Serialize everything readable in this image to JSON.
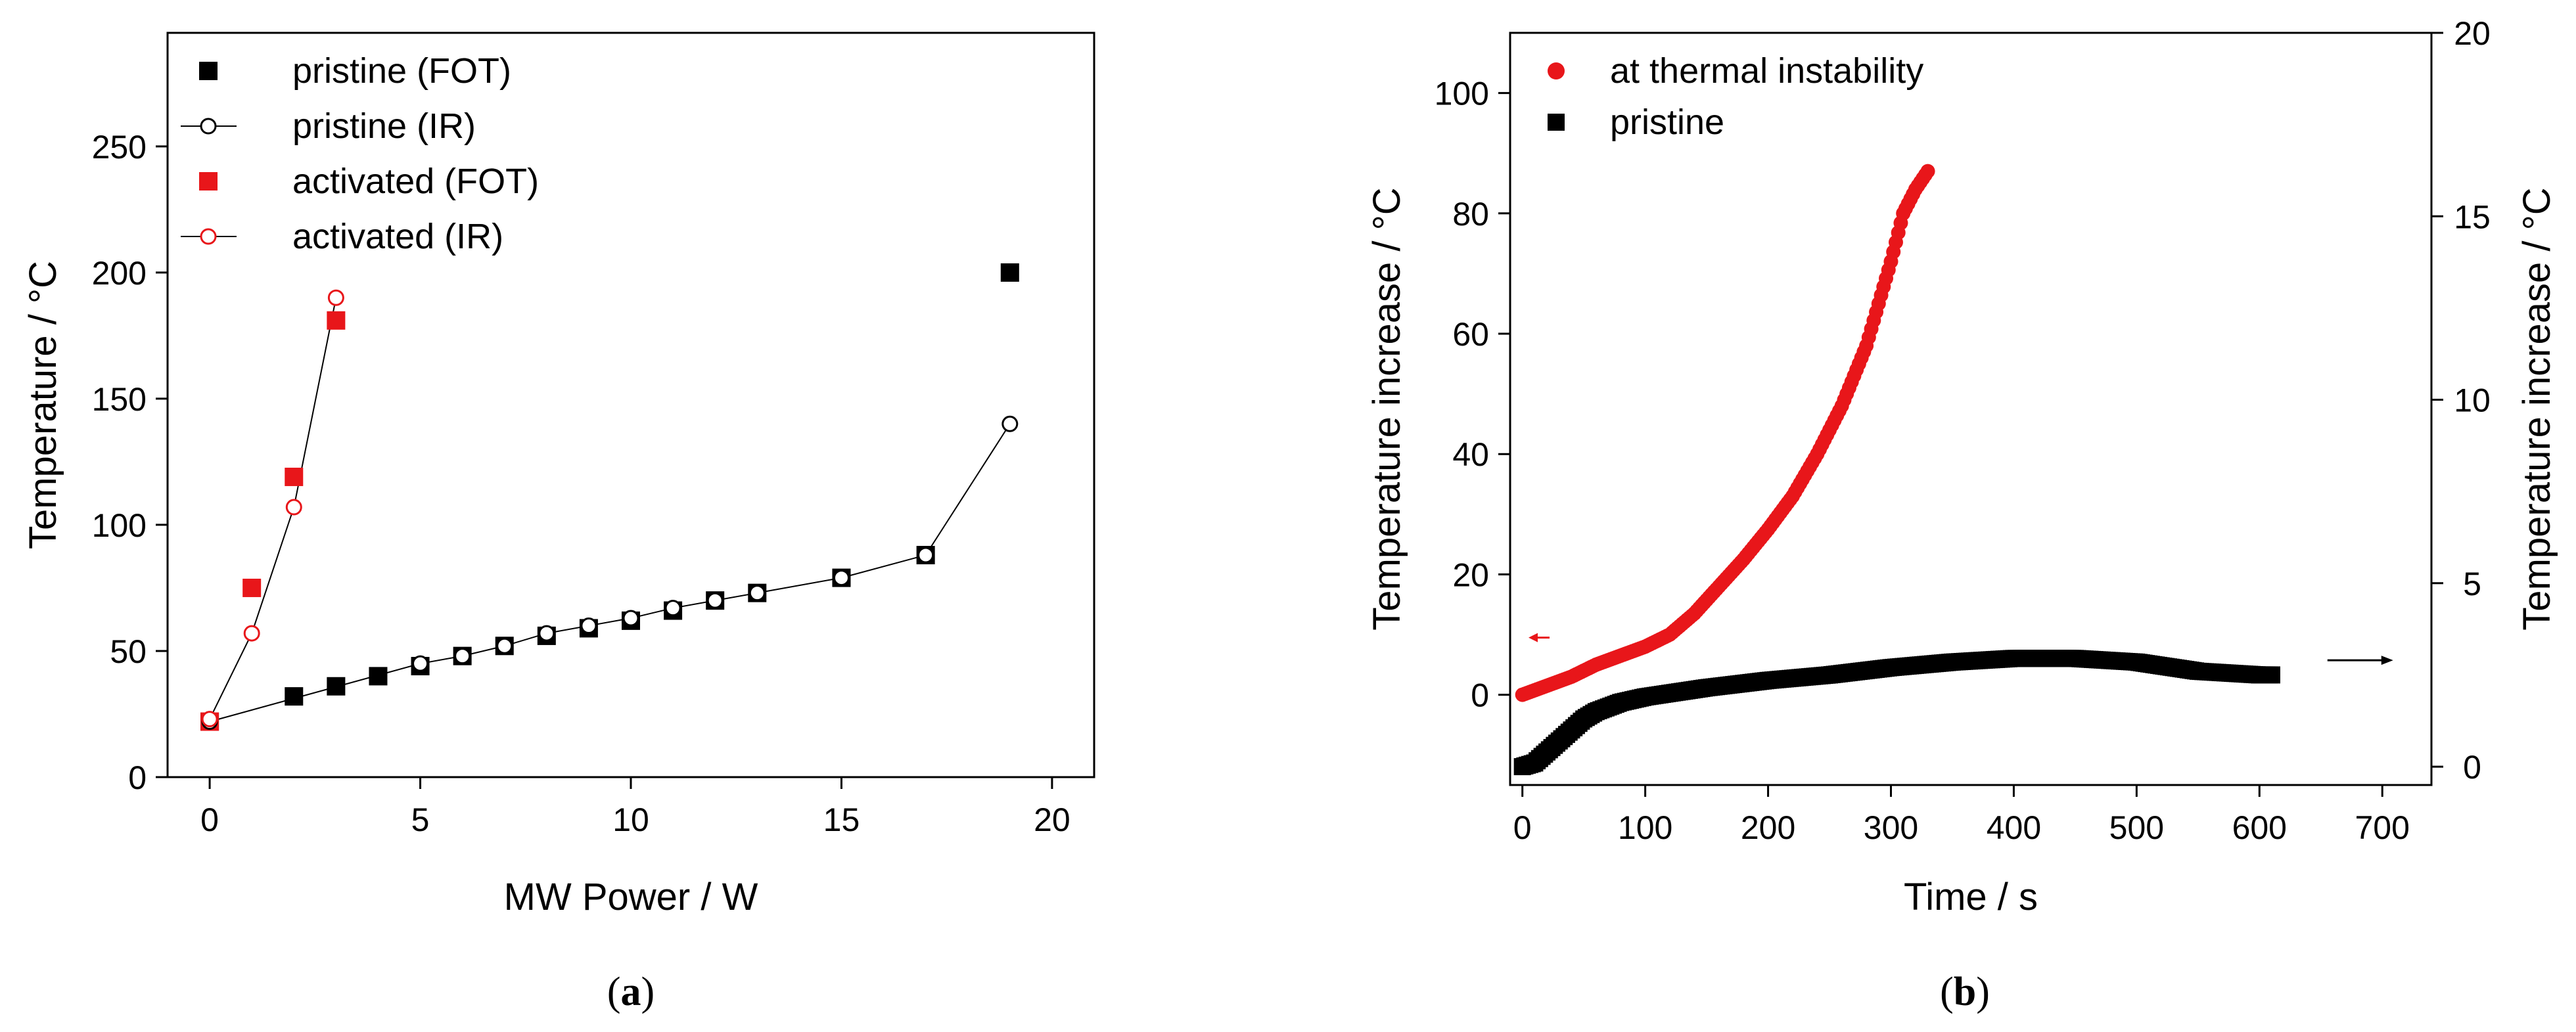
{
  "chart_data": [
    {
      "type": "scatter",
      "panel_label": "a",
      "xlabel": "MW Power / W",
      "ylabel": "Temperature / °C",
      "xlim": [
        -1,
        21
      ],
      "ylim": [
        0,
        295
      ],
      "xticks": [
        0,
        5,
        10,
        15,
        20
      ],
      "yticks": [
        0,
        50,
        100,
        150,
        200,
        250
      ],
      "legend_position": "top-left",
      "series": [
        {
          "name": "pristine (FOT)",
          "color": "#000000",
          "marker": "square-filled",
          "line": false,
          "x": [
            0,
            2,
            3,
            4,
            5,
            6,
            7,
            8,
            9,
            10,
            11,
            12,
            13,
            15,
            17,
            19
          ],
          "y": [
            22,
            32,
            36,
            40,
            44,
            48,
            52,
            56,
            59,
            62,
            66,
            70,
            73,
            79,
            88,
            200
          ]
        },
        {
          "name": "pristine (IR)",
          "color": "#000000",
          "marker": "circle-open",
          "line": true,
          "x": [
            0,
            5,
            6,
            7,
            8,
            9,
            10,
            11,
            12,
            13,
            15,
            17,
            19
          ],
          "y": [
            22,
            45,
            48,
            52,
            57,
            60,
            63,
            67,
            70,
            73,
            79,
            88,
            140
          ]
        },
        {
          "name": "activated (FOT)",
          "color": "#e8161a",
          "marker": "square-filled",
          "line": false,
          "x": [
            0,
            1,
            2,
            3
          ],
          "y": [
            22,
            75,
            119,
            181
          ]
        },
        {
          "name": "activated (IR)",
          "color": "#e8161a",
          "marker": "circle-open",
          "line": true,
          "x": [
            0,
            1,
            2,
            3
          ],
          "y": [
            23,
            57,
            107,
            190
          ]
        }
      ]
    },
    {
      "type": "scatter",
      "panel_label": "b",
      "xlabel": "Time / s",
      "ylabel_left": "Temperature increase / °C",
      "ylabel_right": "Temperature increase / °C",
      "xlim": [
        -10,
        740
      ],
      "ylim_left": [
        -15,
        110
      ],
      "ylim_right": [
        -0.5,
        20
      ],
      "xticks": [
        0,
        100,
        200,
        300,
        400,
        500,
        600,
        700
      ],
      "yticks_left": [
        0,
        20,
        40,
        60,
        80,
        100
      ],
      "yticks_right": [
        0,
        5,
        10,
        15,
        20
      ],
      "legend_position": "top-left",
      "series": [
        {
          "name": "at thermal instability",
          "color": "#e8161a",
          "marker": "circle-filled",
          "axis": "left",
          "x": [
            0,
            20,
            40,
            60,
            80,
            100,
            120,
            140,
            160,
            180,
            200,
            220,
            240,
            260,
            280,
            300,
            310,
            320,
            330
          ],
          "y": [
            0,
            1.5,
            3,
            5,
            6.5,
            8,
            10,
            13.5,
            18,
            22.5,
            27.5,
            33,
            40,
            48,
            58,
            72,
            80,
            84,
            87
          ]
        },
        {
          "name": "pristine",
          "color": "#000000",
          "marker": "square-filled",
          "axis": "right",
          "x": [
            0,
            10,
            20,
            30,
            40,
            50,
            60,
            80,
            100,
            120,
            150,
            200,
            250,
            300,
            350,
            400,
            450,
            500,
            550,
            600,
            610
          ],
          "y": [
            0,
            0.1,
            0.4,
            0.7,
            1.0,
            1.3,
            1.5,
            1.75,
            1.9,
            2.0,
            2.15,
            2.35,
            2.5,
            2.7,
            2.85,
            2.95,
            2.95,
            2.85,
            2.6,
            2.5,
            2.5
          ]
        }
      ],
      "annotations": [
        {
          "type": "arrow",
          "direction": "left",
          "points_to_axis": "left",
          "at": [
            5,
            9.5
          ]
        },
        {
          "type": "arrow",
          "direction": "right",
          "points_to_axis": "right",
          "at": [
            650,
            2.9
          ]
        }
      ]
    }
  ],
  "captions": {
    "a": "a",
    "b": "b"
  }
}
